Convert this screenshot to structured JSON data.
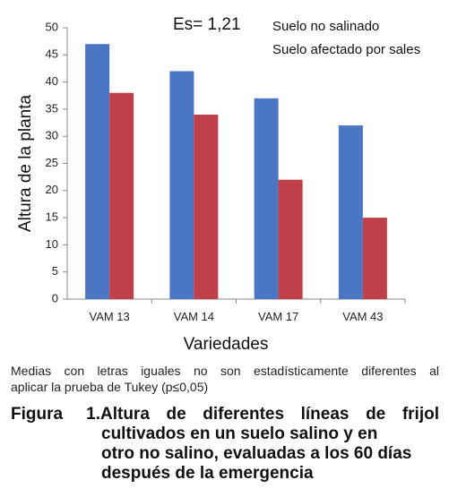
{
  "chart_data": {
    "type": "bar",
    "categories": [
      "VAM 13",
      "VAM 14",
      "VAM 17",
      "VAM 43"
    ],
    "series": [
      {
        "name": "Suelo no salinado",
        "values": [
          47,
          42,
          37,
          32
        ],
        "color": "#4a76c4"
      },
      {
        "name": "Suelo afectado por sales",
        "values": [
          38,
          34,
          22,
          15
        ],
        "color": "#c0404a"
      }
    ],
    "xlabel": "Variedades",
    "ylabel": "Altura de la planta",
    "ylim": [
      0,
      50
    ],
    "yticks": [
      0,
      5,
      10,
      15,
      20,
      25,
      30,
      35,
      40,
      45,
      50
    ],
    "grid": false,
    "legend_position": "top-right",
    "annotation": "Es= 1,21"
  },
  "note": {
    "line1": "Medias con letras iguales no son estadísticamente diferentes al",
    "line2": "aplicar la prueba de Tukey (p≤0,05)"
  },
  "caption": {
    "number": "Figura 1.",
    "line1": "Altura de diferentes líneas de frijol",
    "line2": "cultivados en un suelo salino y en",
    "line3": "otro no salino, evaluadas a los 60 días",
    "line4": "después de la emergencia"
  }
}
